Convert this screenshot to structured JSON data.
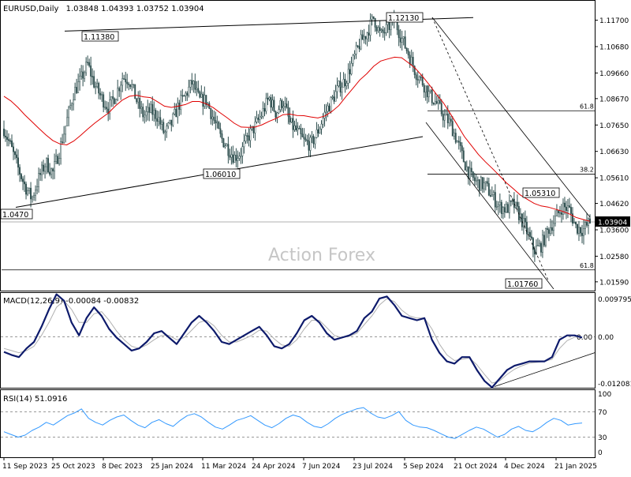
{
  "header": {
    "symbol": "EURUSD,Daily",
    "ohlc": "1.03848 1.04393 1.03752 1.03904"
  },
  "watermark": "Action Forex",
  "price_panel": {
    "ticks": [
      "1.11700",
      "1.10680",
      "1.09660",
      "1.08670",
      "1.07650",
      "1.06630",
      "1.05610",
      "1.04620",
      "1.03600",
      "1.02580",
      "1.01590"
    ],
    "current_price_label": "1.03904",
    "callouts": [
      "1.12130",
      "1.11380",
      "1.06010",
      "1.05310",
      "1.01760",
      "1.0470"
    ],
    "fib_labels": [
      "61.8",
      "38.2",
      "61.8"
    ]
  },
  "macd_panel": {
    "title": "MACD(12,26,9) -0.00084 -0.00832",
    "ticks": [
      "0.009795",
      "0.00",
      "-0.012081"
    ],
    "value_label": "0.00"
  },
  "rsi_panel": {
    "title": "RSI(14) 51.0916",
    "ticks": [
      "100",
      "70",
      "30",
      "0"
    ]
  },
  "x_axis": {
    "labels": [
      "11 Sep 2023",
      "25 Oct 2023",
      "8 Dec 2023",
      "25 Jan 2024",
      "11 Mar 2024",
      "24 Apr 2024",
      "7 Jun 2024",
      "23 Jul 2024",
      "5 Sep 2024",
      "21 Oct 2024",
      "4 Dec 2024",
      "21 Jan 2025"
    ]
  },
  "chart_data": [
    {
      "type": "candlestick",
      "title": "EURUSD,Daily",
      "ylim": [
        1.0125,
        1.1245
      ],
      "x_labels": [
        "11 Sep 2023",
        "25 Oct 2023",
        "8 Dec 2023",
        "25 Jan 2024",
        "11 Mar 2024",
        "24 Apr 2024",
        "7 Jun 2024",
        "23 Jul 2024",
        "5 Sep 2024",
        "21 Oct 2024",
        "4 Dec 2024",
        "21 Jan 2025"
      ],
      "close_path": [
        1.075,
        1.068,
        1.06,
        1.053,
        1.048,
        1.056,
        1.062,
        1.058,
        1.067,
        1.078,
        1.089,
        1.094,
        1.1,
        1.092,
        1.087,
        1.083,
        1.088,
        1.095,
        1.094,
        1.086,
        1.08,
        1.082,
        1.08,
        1.073,
        1.077,
        1.084,
        1.088,
        1.093,
        1.086,
        1.086,
        1.079,
        1.072,
        1.068,
        1.064,
        1.066,
        1.072,
        1.076,
        1.081,
        1.087,
        1.081,
        1.086,
        1.077,
        1.074,
        1.07,
        1.069,
        1.074,
        1.081,
        1.086,
        1.091,
        1.094,
        1.101,
        1.108,
        1.112,
        1.118,
        1.111,
        1.114,
        1.117,
        1.11,
        1.104,
        1.097,
        1.093,
        1.088,
        1.085,
        1.08,
        1.077,
        1.07,
        1.062,
        1.056,
        1.054,
        1.053,
        1.049,
        1.045,
        1.044,
        1.046,
        1.041,
        1.035,
        1.028,
        1.03,
        1.036,
        1.04,
        1.045,
        1.044,
        1.037,
        1.036,
        1.039
      ],
      "moving_average_path": [
        1.0876,
        1.0858,
        1.0833,
        1.0804,
        1.0778,
        1.0752,
        1.0727,
        1.0705,
        1.0692,
        1.0688,
        1.0703,
        1.0725,
        1.0749,
        1.0772,
        1.0792,
        1.0812,
        1.0839,
        1.0862,
        1.0876,
        1.088,
        1.0874,
        1.0871,
        1.0855,
        1.0838,
        1.0833,
        1.0838,
        1.0844,
        1.0856,
        1.0856,
        1.0847,
        1.0832,
        1.0812,
        1.0793,
        1.0772,
        1.0757,
        1.0756,
        1.0757,
        1.0766,
        1.0779,
        1.079,
        1.0805,
        1.0807,
        1.0802,
        1.0801,
        1.0796,
        1.0792,
        1.08,
        1.0817,
        1.084,
        1.0874,
        1.0906,
        1.0939,
        1.0963,
        1.0992,
        1.1012,
        1.102,
        1.1027,
        1.1025,
        1.1005,
        1.0983,
        1.0953,
        1.0919,
        1.0883,
        1.085,
        1.0808,
        1.0765,
        1.072,
        1.0686,
        1.0651,
        1.0623,
        1.0597,
        1.057,
        1.0542,
        1.0519,
        1.0495,
        1.0478,
        1.0462,
        1.0452,
        1.0448,
        1.044,
        1.0432,
        1.0422,
        1.0408,
        1.04,
        1.0393
      ],
      "trendlines": [
        {
          "from": [
            1.1128,
            "25 Oct 2023"
          ],
          "to": [
            1.118,
            "5 Sep 2024"
          ]
        },
        {
          "from": [
            1.0447,
            "11 Sep 2023"
          ],
          "to": [
            1.072,
            "23 Jul 2024"
          ]
        }
      ],
      "fibonacci": [
        {
          "label": "61.8",
          "value": 1.082
        },
        {
          "label": "38.2",
          "value": 1.0575
        },
        {
          "label": "61.8",
          "value": 1.0205
        }
      ],
      "current_price": 1.03904
    },
    {
      "type": "line",
      "title": "MACD(12,26,9) -0.00084 -0.00832",
      "ylim": [
        -0.012081,
        0.009795
      ],
      "series": [
        {
          "name": "",
          "values": [
            -0.0038,
            -0.0045,
            -0.005,
            -0.003,
            -0.0015,
            0.002,
            0.006,
            0.0095,
            0.008,
            0.003,
            0.0,
            0.004,
            0.0065,
            0.0045,
            0.0015,
            -0.0005,
            -0.002,
            -0.0035,
            -0.003,
            -0.0015,
            0.0005,
            0.001,
            -0.0005,
            -0.002,
            0.0005,
            0.003,
            0.0045,
            0.003,
            0.001,
            -0.0015,
            -0.002,
            -0.001,
            0.0,
            0.001,
            0.002,
            0.0,
            -0.0025,
            -0.003,
            -0.002,
            0.0005,
            0.0035,
            0.0045,
            0.003,
            0.0005,
            -0.001,
            -0.0005,
            0.0,
            0.001,
            0.004,
            0.0055,
            0.0085,
            0.009,
            0.007,
            0.0045,
            0.004,
            0.0035,
            0.004,
            -0.001,
            -0.004,
            -0.006,
            -0.0065,
            -0.005,
            -0.005,
            -0.008,
            -0.0105,
            -0.012,
            -0.01,
            -0.008,
            -0.007,
            -0.0065,
            -0.006,
            -0.006,
            -0.006,
            -0.005,
            -0.001,
            0.0,
            0.0,
            -0.0005
          ]
        },
        {
          "name": "",
          "values": [
            -0.003,
            -0.0035,
            -0.004,
            -0.0035,
            -0.0025,
            0.0,
            0.003,
            0.0065,
            0.008,
            0.006,
            0.003,
            0.003,
            0.005,
            0.0055,
            0.0035,
            0.001,
            -0.001,
            -0.0025,
            -0.003,
            -0.0022,
            -0.001,
            0.0,
            0.0,
            -0.001,
            -0.0005,
            0.0012,
            0.003,
            0.0035,
            0.0022,
            0.0,
            -0.0015,
            -0.0015,
            -0.0008,
            0.0,
            0.0012,
            0.001,
            -0.0008,
            -0.0022,
            -0.0025,
            -0.001,
            0.0015,
            0.0035,
            0.0035,
            0.0018,
            0.0,
            -0.0005,
            -0.0002,
            0.0005,
            0.0025,
            0.0045,
            0.007,
            0.0085,
            0.0078,
            0.0058,
            0.0045,
            0.004,
            0.004,
            0.0015,
            -0.002,
            -0.0045,
            -0.0058,
            -0.0055,
            -0.0052,
            -0.0068,
            -0.009,
            -0.011,
            -0.0105,
            -0.009,
            -0.0078,
            -0.007,
            -0.0064,
            -0.0062,
            -0.006,
            -0.0055,
            -0.003,
            -0.0012,
            -0.0004,
            -0.0003
          ]
        }
      ],
      "trendline": {
        "from": [
          -0.0118,
          "21 Oct 2024"
        ],
        "to": [
          -0.004,
          "21 Jan 2025"
        ]
      }
    },
    {
      "type": "line",
      "title": "RSI(14) 51.0916",
      "ylim": [
        0,
        100
      ],
      "levels": [
        70,
        30
      ],
      "series": [
        {
          "name": "",
          "values": [
            38,
            34,
            30,
            33,
            40,
            45,
            52,
            48,
            55,
            62,
            66,
            72,
            58,
            52,
            48,
            55,
            60,
            63,
            55,
            48,
            44,
            52,
            56,
            50,
            46,
            55,
            62,
            65,
            60,
            52,
            45,
            42,
            48,
            55,
            58,
            62,
            55,
            48,
            44,
            50,
            58,
            63,
            60,
            52,
            46,
            44,
            50,
            58,
            64,
            68,
            72,
            74,
            66,
            60,
            58,
            62,
            68,
            55,
            48,
            45,
            44,
            40,
            35,
            30,
            28,
            34,
            40,
            45,
            42,
            36,
            30,
            34,
            42,
            46,
            40,
            38,
            44,
            52,
            58,
            55,
            48,
            50,
            51
          ]
        }
      ]
    }
  ]
}
